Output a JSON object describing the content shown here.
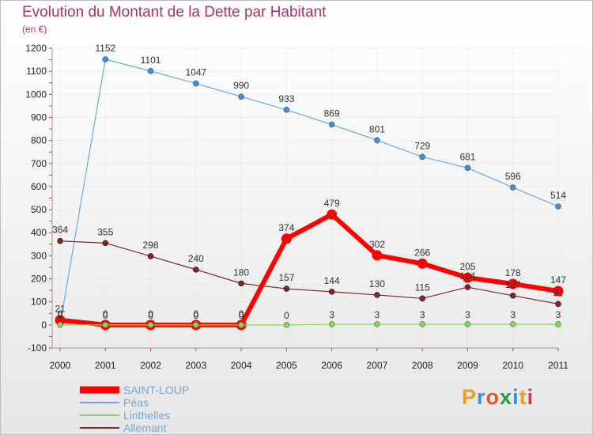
{
  "title": "Evolution du Montant de la Dette par Habitant",
  "unit_label": "(en €)",
  "logo_text": "Proxiti",
  "colors": {
    "title": "#b0306a",
    "saint_loup": "#ff0000",
    "peas": "#6fa8dc",
    "linthelles": "#8fd16a",
    "allemant": "#7a2a2a"
  },
  "chart_data": {
    "type": "line",
    "title": "Evolution du Montant de la Dette par Habitant",
    "ylabel": "(en €)",
    "xlabel": "",
    "x": [
      "2000",
      "2001",
      "2002",
      "2003",
      "2004",
      "2005",
      "2006",
      "2007",
      "2008",
      "2009",
      "2010",
      "2011"
    ],
    "ylim": [
      -100,
      1200
    ],
    "yticks": [
      -100,
      0,
      100,
      200,
      300,
      400,
      500,
      600,
      700,
      800,
      900,
      1000,
      1100,
      1200
    ],
    "grid": true,
    "legend": "bottom-left",
    "series": [
      {
        "name": "SAINT-LOUP",
        "color": "#ff0000",
        "values": [
          21,
          0,
          0,
          0,
          0,
          374,
          479,
          302,
          266,
          205,
          178,
          147
        ],
        "labels": [
          "21",
          "0",
          "0",
          "0",
          "0",
          "374",
          "479",
          "302",
          "266",
          "205",
          "178",
          "147"
        ]
      },
      {
        "name": "Péas",
        "color": "#6fa8dc",
        "values": [
          0,
          1152,
          1101,
          1047,
          990,
          933,
          869,
          801,
          729,
          681,
          596,
          514
        ],
        "labels": [
          "0",
          "1152",
          "1101",
          "1047",
          "990",
          "933",
          "869",
          "801",
          "729",
          "681",
          "596",
          "514"
        ]
      },
      {
        "name": "Linthelles",
        "color": "#8fd16a",
        "values": [
          0,
          0,
          0,
          0,
          0,
          0,
          3,
          3,
          3,
          3,
          3,
          3
        ],
        "labels": [
          "0",
          "0",
          "0",
          "0",
          "0",
          "0",
          "3",
          "3",
          "3",
          "3",
          "3",
          "3"
        ]
      },
      {
        "name": "Allemant",
        "color": "#7a2a2a",
        "values": [
          364,
          355,
          298,
          240,
          180,
          157,
          144,
          130,
          115,
          164,
          127,
          91
        ],
        "labels": [
          "364",
          "355",
          "298",
          "240",
          "180",
          "157",
          "144",
          "130",
          "115",
          "164",
          "127",
          "91"
        ]
      }
    ]
  }
}
